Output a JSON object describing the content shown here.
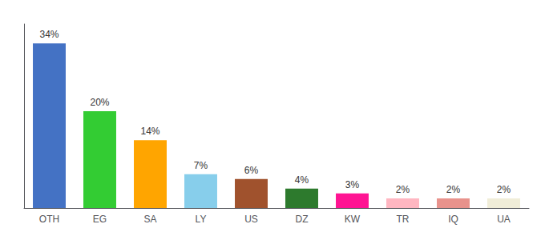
{
  "chart_data": {
    "type": "bar",
    "categories": [
      "OTH",
      "EG",
      "SA",
      "LY",
      "US",
      "DZ",
      "KW",
      "TR",
      "IQ",
      "UA"
    ],
    "values": [
      34,
      20,
      14,
      7,
      6,
      4,
      3,
      2,
      2,
      2
    ],
    "value_labels": [
      "34%",
      "20%",
      "14%",
      "7%",
      "6%",
      "4%",
      "3%",
      "2%",
      "2%",
      "2%"
    ],
    "colors": [
      "#4472C4",
      "#33CC33",
      "#FFA500",
      "#87CEEB",
      "#A0522D",
      "#2D7A2D",
      "#FF1493",
      "#FFB6C1",
      "#E8928C",
      "#F0EDD8"
    ],
    "ylim": [
      0,
      38
    ],
    "data_labels": true,
    "tick_labels": "x",
    "grid": false
  }
}
